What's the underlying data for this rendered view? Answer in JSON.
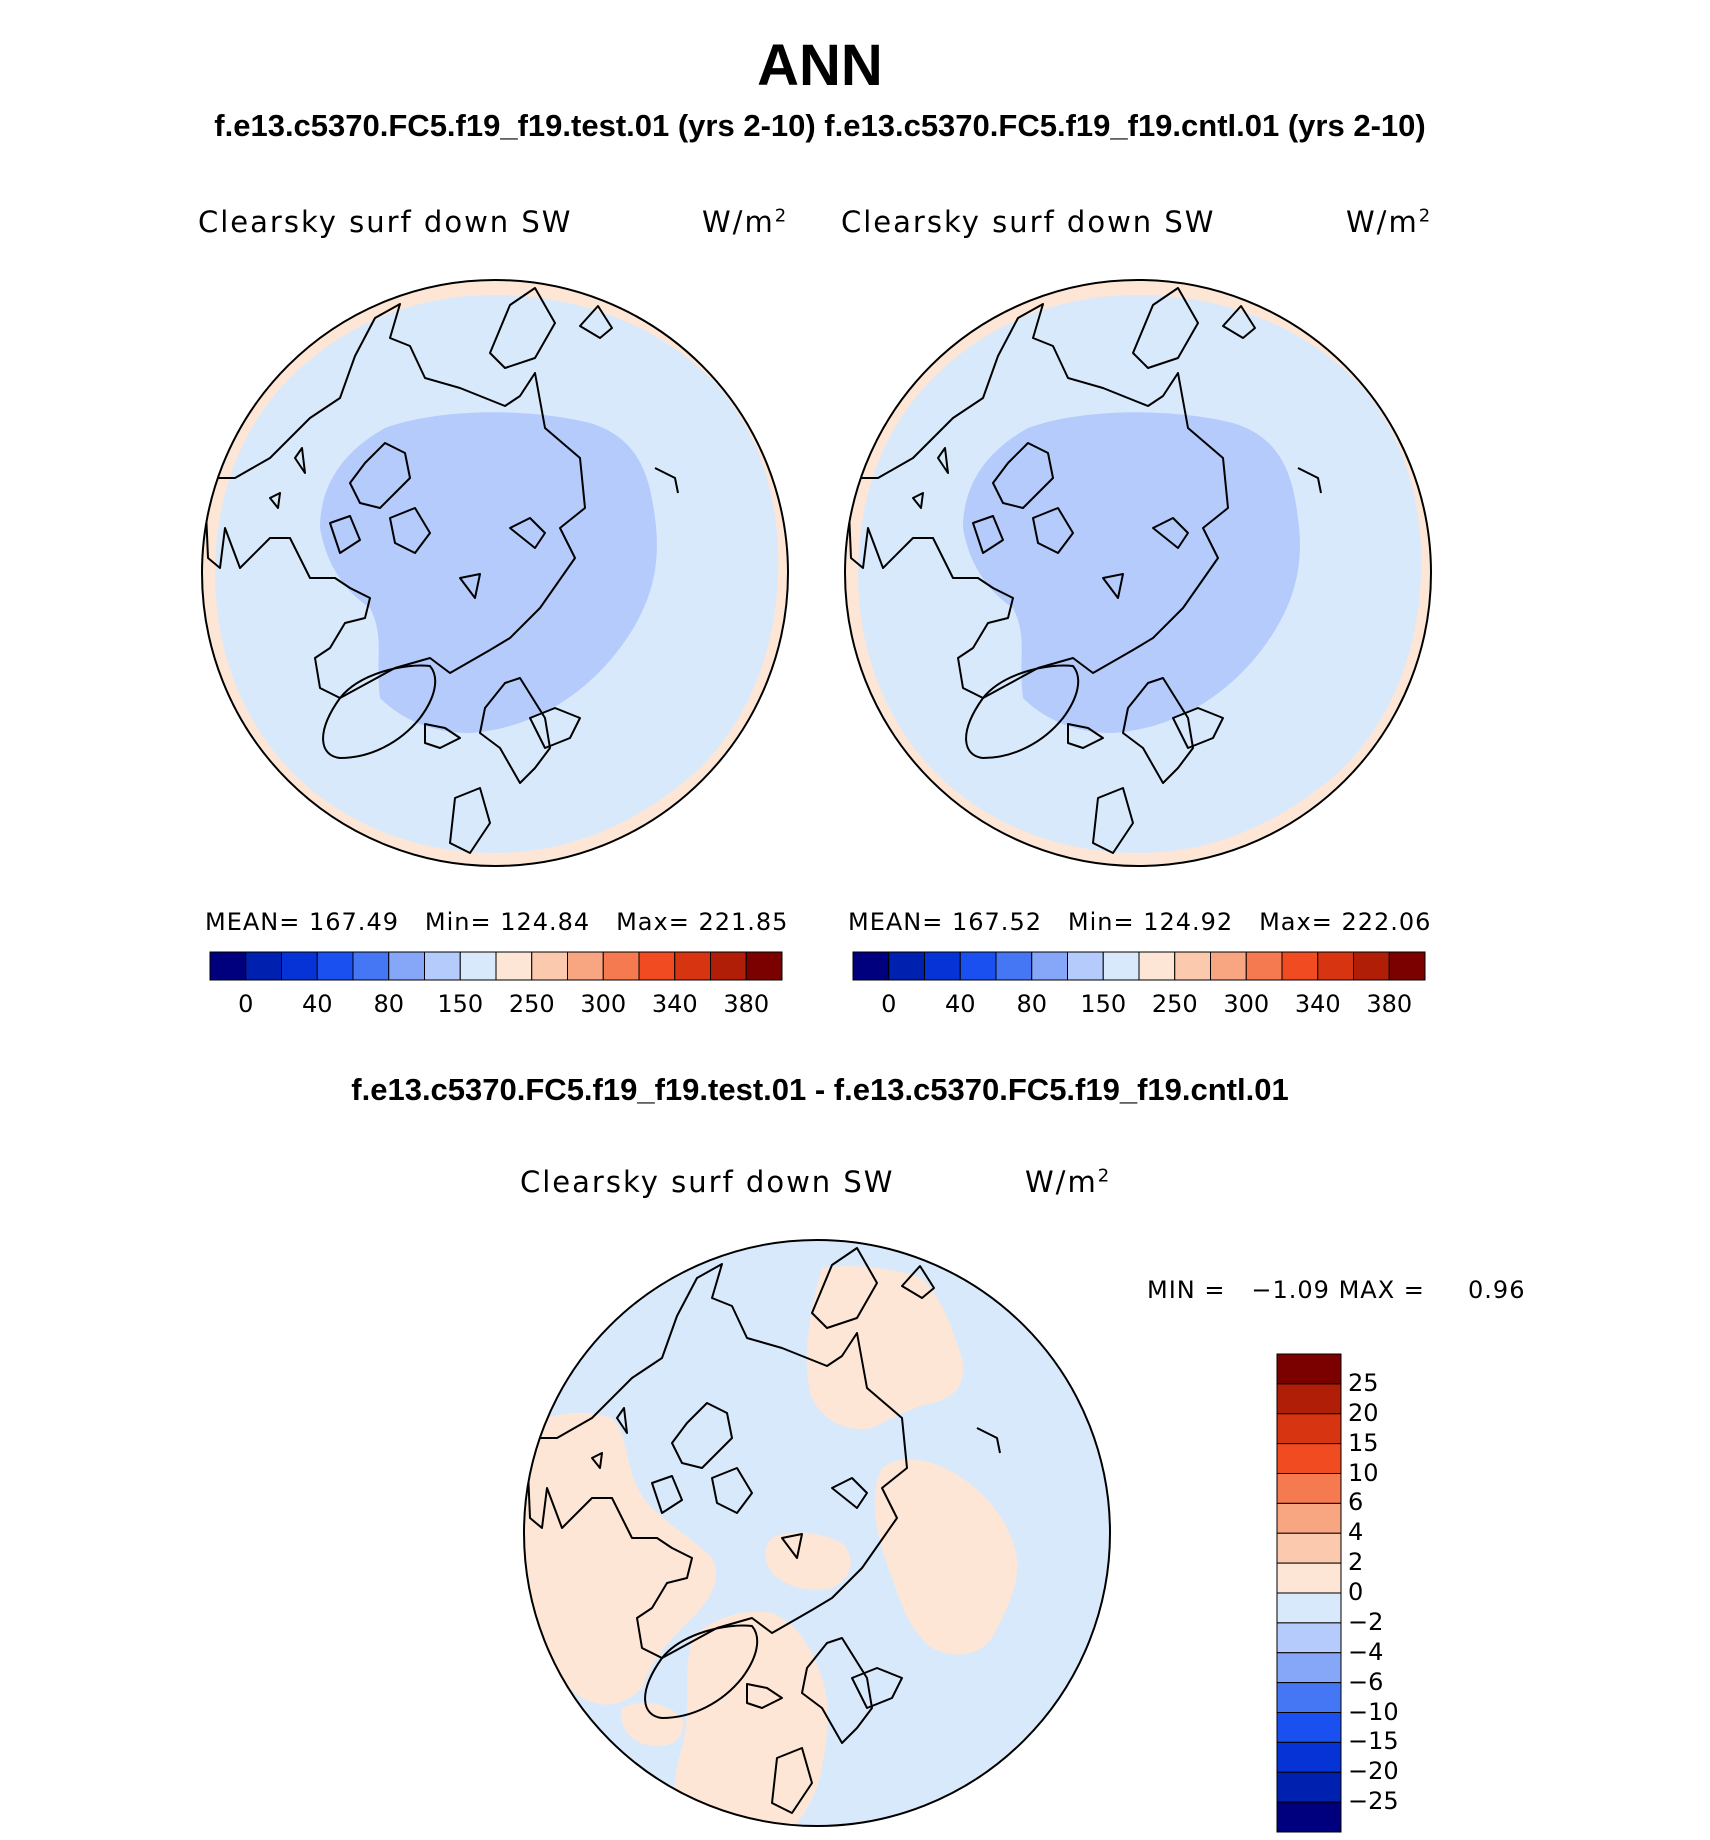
{
  "title": "ANN",
  "top_title": "f.e13.c5370.FC5.f19_f19.test.01 (yrs 2-10) f.e13.c5370.FC5.f19_f19.cntl.01 (yrs 2-10)",
  "diff_title": "f.e13.c5370.FC5.f19_f19.test.01 - f.e13.c5370.FC5.f19_f19.cntl.01",
  "panels": [
    {
      "variable": "Clearsky surf down SW",
      "units_base": "W/m",
      "units_exp": "2",
      "mean_label": "MEAN=",
      "mean": "167.49",
      "min_label": "Min=",
      "min": "124.84",
      "max_label": "Max=",
      "max": "221.85"
    },
    {
      "variable": "Clearsky surf down SW",
      "units_base": "W/m",
      "units_exp": "2",
      "mean_label": "MEAN=",
      "mean": "167.52",
      "min_label": "Min=",
      "min": "124.92",
      "max_label": "Max=",
      "max": "222.06"
    }
  ],
  "diff_panel": {
    "variable": "Clearsky surf down SW",
    "units_base": "W/m",
    "units_exp": "2",
    "min_label": "MIN =",
    "min": "−1.09",
    "max_label": "MAX =",
    "max": "0.96"
  },
  "colorbar_abs": {
    "colors": [
      "#00007f",
      "#0020b0",
      "#0533d6",
      "#1a4ff0",
      "#4577f5",
      "#86a7f8",
      "#b5cbfb",
      "#d9e9fc",
      "#fde6d5",
      "#fbc9ad",
      "#f8a582",
      "#f67a4f",
      "#f14b22",
      "#d73411",
      "#b01e07",
      "#7b0000"
    ],
    "tick_labels": [
      "0",
      "40",
      "80",
      "150",
      "250",
      "300",
      "340",
      "380"
    ]
  },
  "colorbar_diff": {
    "colors": [
      "#7b0000",
      "#b01e07",
      "#d73411",
      "#f14b22",
      "#f67a4f",
      "#f8a582",
      "#fbc9ad",
      "#fde6d5",
      "#d9e9fc",
      "#b5cbfb",
      "#86a7f8",
      "#4577f5",
      "#1a4ff0",
      "#0533d6",
      "#0020b0",
      "#00007f"
    ],
    "tick_labels": [
      "25",
      "20",
      "15",
      "10",
      "6",
      "4",
      "2",
      "0",
      "−2",
      "−4",
      "−6",
      "−10",
      "−15",
      "−20",
      "−25"
    ]
  },
  "map_colors": {
    "edge_band": "#fde6d5",
    "main": "#d9e9fc",
    "core": "#b5cbfb",
    "diff_positive": "#fde6d5",
    "diff_negative": "#d9e9fc",
    "coast": "#000000"
  }
}
